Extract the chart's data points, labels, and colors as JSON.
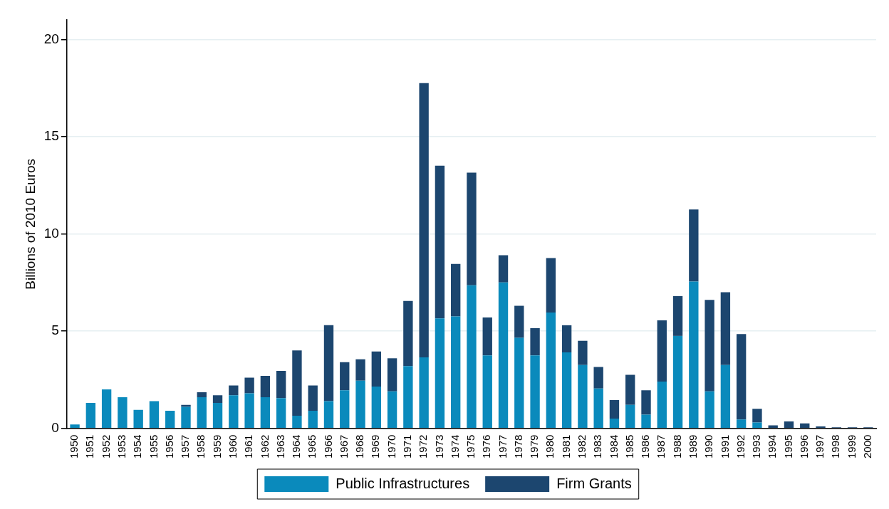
{
  "chart_data": {
    "type": "bar",
    "stacked": true,
    "ylabel": "Billions of 2010 Euros",
    "categories": [
      "1950",
      "1951",
      "1952",
      "1953",
      "1954",
      "1955",
      "1956",
      "1957",
      "1958",
      "1959",
      "1960",
      "1961",
      "1962",
      "1963",
      "1964",
      "1965",
      "1966",
      "1967",
      "1968",
      "1969",
      "1970",
      "1971",
      "1972",
      "1973",
      "1974",
      "1975",
      "1976",
      "1977",
      "1978",
      "1979",
      "1980",
      "1981",
      "1982",
      "1983",
      "1984",
      "1985",
      "1986",
      "1987",
      "1988",
      "1989",
      "1990",
      "1991",
      "1992",
      "1993",
      "1994",
      "1995",
      "1996",
      "1997",
      "1998",
      "1999",
      "2000"
    ],
    "series": [
      {
        "name": "Public Infrastructures",
        "color": "#0a8abc",
        "values": [
          0.2,
          1.3,
          2.0,
          1.6,
          0.95,
          1.4,
          0.9,
          1.1,
          1.6,
          1.3,
          1.7,
          1.8,
          1.6,
          1.55,
          0.65,
          0.9,
          1.4,
          1.95,
          2.45,
          2.15,
          1.9,
          3.2,
          3.65,
          5.65,
          5.75,
          7.35,
          3.75,
          7.5,
          4.65,
          3.75,
          5.95,
          3.9,
          3.25,
          2.05,
          0.5,
          1.2,
          0.7,
          2.4,
          4.75,
          7.55,
          1.9,
          3.25,
          0.45,
          0.3,
          0,
          0,
          0,
          0,
          0,
          0,
          0
        ]
      },
      {
        "name": "Firm Grants",
        "color": "#1c466f",
        "values": [
          0,
          0,
          0,
          0,
          0,
          0,
          0,
          0.1,
          0.25,
          0.4,
          0.5,
          0.8,
          1.1,
          1.4,
          3.35,
          1.3,
          3.9,
          1.45,
          1.1,
          1.8,
          1.7,
          3.35,
          14.1,
          7.85,
          2.7,
          5.8,
          1.95,
          1.4,
          1.65,
          1.4,
          2.8,
          1.4,
          1.25,
          1.1,
          0.95,
          1.55,
          1.25,
          3.15,
          2.05,
          3.7,
          4.7,
          3.75,
          4.4,
          0.7,
          0.15,
          0.35,
          0.25,
          0.1,
          0.05,
          0.05,
          0.05
        ]
      }
    ],
    "ylim": [
      0,
      21
    ],
    "yticks": [
      0,
      5,
      10,
      15,
      20
    ],
    "grid": "y",
    "legend": "bottom"
  }
}
